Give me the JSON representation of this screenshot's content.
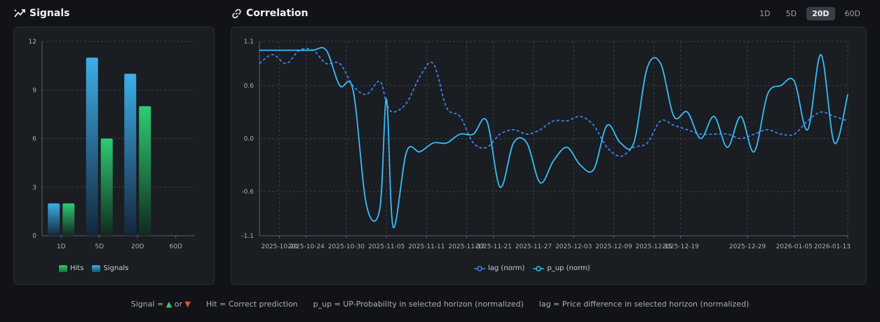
{
  "signals": {
    "title": "Signals"
  },
  "correlation": {
    "title": "Correlation"
  },
  "tabs": [
    {
      "label": "1D",
      "active": false
    },
    {
      "label": "5D",
      "active": false
    },
    {
      "label": "20D",
      "active": true
    },
    {
      "label": "60D",
      "active": false
    }
  ],
  "footer": {
    "signal_prefix": "Signal =",
    "signal_or": "or",
    "hit": "Hit = Correct prediction",
    "p_up": "p_up = UP-Probability in selected horizon (normalized)",
    "lag": "lag = Price difference in selected horizon (normalized)"
  },
  "colors": {
    "hits": "#2ecc71",
    "signals": "#3daee9",
    "lag": "#3b82f6",
    "p_up": "#38bdf8"
  },
  "chart_data": [
    {
      "type": "bar",
      "categories": [
        "1D",
        "5D",
        "20D",
        "60D"
      ],
      "series": [
        {
          "name": "Hits",
          "values": [
            2,
            6,
            8,
            0
          ]
        },
        {
          "name": "Signals",
          "values": [
            2,
            11,
            10,
            0
          ]
        }
      ],
      "ylim": [
        0,
        12
      ],
      "yticks": [
        "0",
        "3",
        "6",
        "9",
        "12"
      ],
      "legend": "bottom",
      "grid": true
    },
    {
      "type": "line",
      "x": [
        "2025-10-17",
        "2025-10-19",
        "2025-10-21",
        "2025-10-23",
        "2025-10-25",
        "2025-10-27",
        "2025-10-29",
        "2025-10-31",
        "2025-11-02",
        "2025-11-04",
        "2025-11-05",
        "2025-11-06",
        "2025-11-08",
        "2025-11-10",
        "2025-11-12",
        "2025-11-14",
        "2025-11-16",
        "2025-11-18",
        "2025-11-20",
        "2025-11-22",
        "2025-11-24",
        "2025-11-26",
        "2025-11-28",
        "2025-11-30",
        "2025-12-02",
        "2025-12-04",
        "2025-12-06",
        "2025-12-08",
        "2025-12-10",
        "2025-12-12",
        "2025-12-14",
        "2025-12-16",
        "2025-12-18",
        "2025-12-20",
        "2025-12-22",
        "2025-12-24",
        "2025-12-26",
        "2025-12-28",
        "2025-12-30",
        "2026-01-01",
        "2026-01-03",
        "2026-01-05",
        "2026-01-07",
        "2026-01-09",
        "2026-01-11",
        "2026-01-13"
      ],
      "series": [
        {
          "name": "lag (norm)",
          "style": "dashed",
          "values": [
            0.85,
            0.95,
            0.85,
            1.0,
            1.0,
            0.85,
            0.85,
            0.6,
            0.5,
            0.65,
            0.4,
            0.3,
            0.4,
            0.7,
            0.85,
            0.35,
            0.25,
            -0.05,
            -0.1,
            0.05,
            0.1,
            0.05,
            0.1,
            0.2,
            0.2,
            0.25,
            0.15,
            -0.1,
            -0.2,
            -0.1,
            -0.05,
            0.2,
            0.15,
            0.1,
            0.05,
            0.05,
            0.05,
            0.0,
            0.05,
            0.1,
            0.05,
            0.05,
            0.2,
            0.3,
            0.25,
            0.2
          ]
        },
        {
          "name": "p_up (norm)",
          "style": "solid",
          "values": [
            1.0,
            1.0,
            1.0,
            1.0,
            1.0,
            1.0,
            0.6,
            0.55,
            -0.75,
            -0.8,
            0.45,
            -1.0,
            -0.15,
            -0.15,
            -0.05,
            -0.05,
            0.05,
            0.05,
            0.2,
            -0.55,
            -0.05,
            -0.05,
            -0.5,
            -0.25,
            -0.1,
            -0.3,
            -0.35,
            0.15,
            -0.05,
            -0.05,
            0.8,
            0.85,
            0.25,
            0.3,
            0.0,
            0.25,
            -0.1,
            0.25,
            -0.15,
            0.5,
            0.6,
            0.65,
            0.1,
            0.95,
            -0.05,
            0.5
          ]
        }
      ],
      "xticks": [
        "2025-10-20",
        "2025-10-24",
        "2025-10-30",
        "2025-11-05",
        "2025-11-11",
        "2025-11-17",
        "2025-11-21",
        "2025-11-27",
        "2025-12-03",
        "2025-12-09",
        "2025-12-15",
        "2025-12-19",
        "2025-12-29",
        "2026-01-05",
        "2026-01-13"
      ],
      "yticks": [
        "1.1",
        "0.6",
        "0.0",
        "-0.6",
        "-1.1"
      ],
      "ylim": [
        -1.1,
        1.1
      ],
      "legend": "bottom",
      "grid": true
    }
  ]
}
